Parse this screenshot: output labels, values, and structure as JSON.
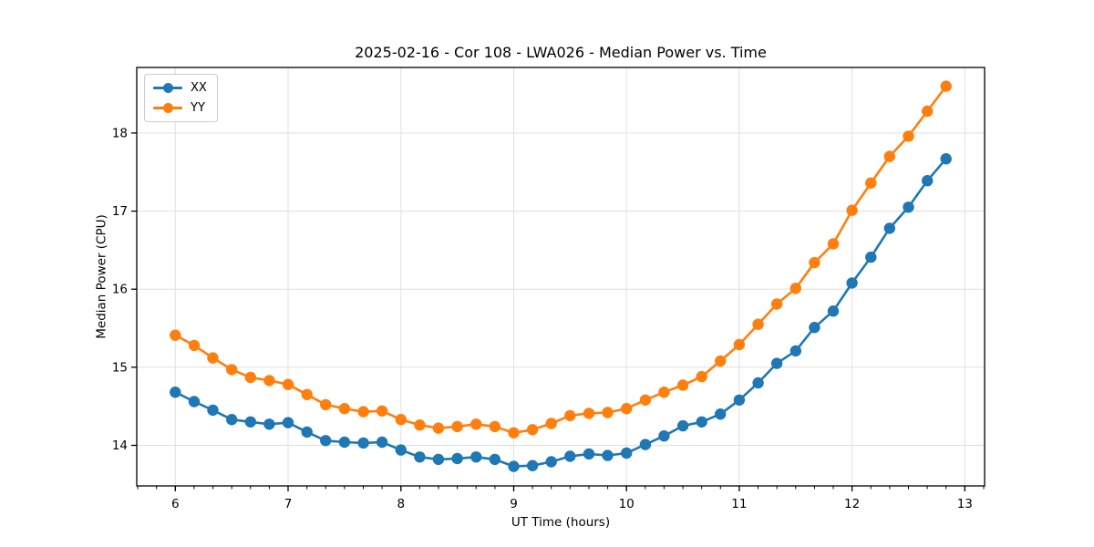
{
  "title": "2025-02-16 - Cor 108 - LWA026 - Median Power vs. Time",
  "chart_data": {
    "type": "line",
    "title": "2025-02-16 - Cor 108 - LWA026 - Median Power vs. Time",
    "xlabel": "UT Time (hours)",
    "ylabel": "Median Power (CPU)",
    "xlim": [
      5.658,
      13.175
    ],
    "ylim": [
      13.48,
      18.84
    ],
    "xticks": [
      6,
      7,
      8,
      9,
      10,
      11,
      12,
      13
    ],
    "yticks": [
      14,
      15,
      16,
      17,
      18
    ],
    "x_minor_interval": 0.1666667,
    "grid": true,
    "grid_color": "#e0e0e0",
    "legend_position": "upper left",
    "marker": "o",
    "x": [
      6.0,
      6.167,
      6.333,
      6.5,
      6.667,
      6.833,
      7.0,
      7.167,
      7.333,
      7.5,
      7.667,
      7.833,
      8.0,
      8.167,
      8.333,
      8.5,
      8.667,
      8.833,
      9.0,
      9.167,
      9.333,
      9.5,
      9.667,
      9.833,
      10.0,
      10.167,
      10.333,
      10.5,
      10.667,
      10.833,
      11.0,
      11.167,
      11.333,
      11.5,
      11.667,
      11.833,
      12.0,
      12.167,
      12.333,
      12.5,
      12.667,
      12.833
    ],
    "series": [
      {
        "name": "XX",
        "color": "#1f77b4",
        "values": [
          14.68,
          14.56,
          14.45,
          14.33,
          14.3,
          14.27,
          14.29,
          14.17,
          14.06,
          14.04,
          14.03,
          14.04,
          13.94,
          13.85,
          13.82,
          13.83,
          13.85,
          13.82,
          13.73,
          13.74,
          13.79,
          13.86,
          13.89,
          13.87,
          13.9,
          14.01,
          14.12,
          14.25,
          14.3,
          14.4,
          14.58,
          14.8,
          15.05,
          15.21,
          15.51,
          15.72,
          16.08,
          16.41,
          16.78,
          17.05,
          17.39,
          17.67
        ]
      },
      {
        "name": "YY",
        "color": "#ff7f0e",
        "values": [
          15.41,
          15.28,
          15.12,
          14.97,
          14.87,
          14.83,
          14.78,
          14.65,
          14.52,
          14.47,
          14.43,
          14.44,
          14.33,
          14.26,
          14.22,
          14.24,
          14.27,
          14.24,
          14.16,
          14.2,
          14.28,
          14.38,
          14.41,
          14.42,
          14.47,
          14.58,
          14.68,
          14.77,
          14.88,
          15.08,
          15.29,
          15.55,
          15.81,
          16.01,
          16.34,
          16.58,
          17.01,
          17.36,
          17.7,
          17.96,
          18.28,
          18.6
        ]
      }
    ]
  }
}
